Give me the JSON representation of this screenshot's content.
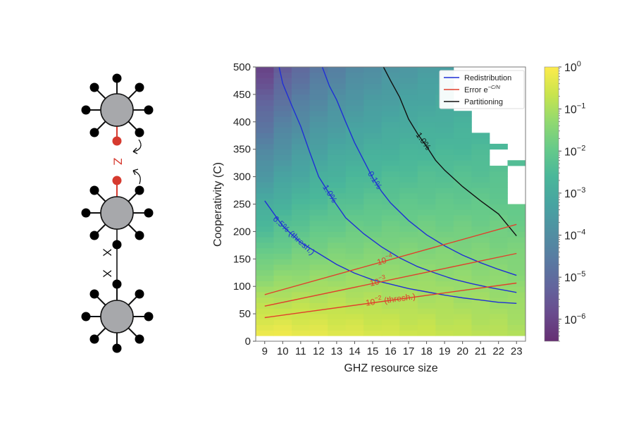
{
  "diagram": {
    "z_label": "Z",
    "x_labels": [
      "X",
      "X"
    ],
    "hub_color": "#a7a8ab",
    "node_color": "#000000",
    "highlight_color": "#d63a2f"
  },
  "chart_data": {
    "type": "heatmap",
    "xlabel": "GHZ resource size",
    "ylabel": "Cooperativity (C)",
    "x": [
      9,
      10,
      11,
      12,
      13,
      14,
      15,
      16,
      17,
      18,
      19,
      20,
      21,
      22,
      23
    ],
    "xtick_labels": [
      "9",
      "10",
      "11",
      "12",
      "13",
      "14",
      "15",
      "16",
      "17",
      "18",
      "19",
      "20",
      "21",
      "22",
      "23"
    ],
    "ylim": [
      0,
      500
    ],
    "yticks": [
      0,
      50,
      100,
      150,
      200,
      250,
      300,
      350,
      400,
      450,
      500
    ],
    "ytick_labels": [
      "0",
      "50",
      "100",
      "150",
      "200",
      "250",
      "300",
      "350",
      "400",
      "450",
      "500"
    ],
    "heatmap_c_range": [
      10,
      500
    ],
    "heatmap_c_step": 10,
    "colorbar": {
      "scale": "log",
      "range": [
        3e-07,
        1
      ],
      "tick_values": [
        1,
        0.1,
        0.01,
        0.001,
        0.0001,
        1e-05,
        1e-06
      ],
      "tick_exponents": [
        "0",
        "−1",
        "−2",
        "−3",
        "−4",
        "−5",
        "−6"
      ],
      "tick_base": "10",
      "colormap": "viridis"
    },
    "masked_cells_note": "white (no data) at top-right",
    "masked_cells": [
      {
        "n": 20,
        "c_min": 420,
        "c_max": 500
      },
      {
        "n": 21,
        "c_min": 380,
        "c_max": 500
      },
      {
        "n": 22,
        "c_min": 360,
        "c_max": 500
      },
      {
        "n": 22,
        "c_min": 320,
        "c_max": 350
      },
      {
        "n": 23,
        "c_min": 330,
        "c_max": 500
      },
      {
        "n": 23,
        "c_min": 250,
        "c_max": 320
      }
    ],
    "legend": {
      "placement": "top-right",
      "entries": [
        {
          "label": "Redistribution",
          "color": "#1f2fd6"
        },
        {
          "label_main": "Error e",
          "label_sup": "−C/N",
          "color": "#e0402c"
        },
        {
          "label": "Partitioning",
          "color": "#111111"
        }
      ]
    },
    "contours": [
      {
        "name": "redistribution-6.5",
        "family": "Redistribution",
        "label": "6.5% (thresh.)",
        "color": "#1f2fd6",
        "points": [
          [
            9,
            256
          ],
          [
            10,
            210
          ],
          [
            11,
            180
          ],
          [
            12,
            160
          ],
          [
            13,
            140
          ],
          [
            14,
            124
          ],
          [
            15,
            112
          ],
          [
            16,
            104
          ],
          [
            17,
            96
          ],
          [
            18,
            90
          ],
          [
            19,
            84
          ],
          [
            20,
            79
          ],
          [
            21,
            75
          ],
          [
            22,
            71
          ],
          [
            23,
            69
          ]
        ]
      },
      {
        "name": "redistribution-1.0",
        "family": "Redistribution",
        "label": "1.0%",
        "color": "#1f2fd6",
        "points": [
          [
            9.8,
            500
          ],
          [
            10,
            470
          ],
          [
            10.5,
            430
          ],
          [
            11,
            392
          ],
          [
            11.5,
            345
          ],
          [
            12,
            300
          ],
          [
            12.8,
            258
          ],
          [
            13.5,
            225
          ],
          [
            14.5,
            196
          ],
          [
            15.5,
            172
          ],
          [
            16.5,
            152
          ],
          [
            17.5,
            136
          ],
          [
            18.5,
            124
          ],
          [
            19.5,
            113
          ],
          [
            20.5,
            105
          ],
          [
            21.5,
            98
          ],
          [
            22.5,
            92
          ],
          [
            23,
            89
          ]
        ]
      },
      {
        "name": "redistribution-0.1",
        "family": "Redistribution",
        "label": "0.1%",
        "color": "#1f2fd6",
        "points": [
          [
            12.2,
            500
          ],
          [
            12.6,
            465
          ],
          [
            13,
            440
          ],
          [
            13.5,
            400
          ],
          [
            14,
            362
          ],
          [
            14.5,
            330
          ],
          [
            15,
            298
          ],
          [
            15.5,
            273
          ],
          [
            16,
            252
          ],
          [
            17,
            220
          ],
          [
            18,
            194
          ],
          [
            19,
            174
          ],
          [
            20,
            157
          ],
          [
            21,
            143
          ],
          [
            22,
            131
          ],
          [
            23,
            120
          ]
        ]
      },
      {
        "name": "partitioning-1.0",
        "family": "Partitioning",
        "label": "1.0%",
        "color": "#111111",
        "points": [
          [
            15.6,
            500
          ],
          [
            16,
            475
          ],
          [
            16.5,
            445
          ],
          [
            17,
            405
          ],
          [
            17.5,
            378
          ],
          [
            18,
            355
          ],
          [
            18.5,
            330
          ],
          [
            19,
            312
          ],
          [
            20,
            282
          ],
          [
            21,
            256
          ],
          [
            22,
            232
          ],
          [
            23,
            192
          ]
        ]
      },
      {
        "name": "error-1e-4",
        "family": "Error",
        "label": "10^-4",
        "label_base": "10",
        "label_exp": "−4",
        "color": "#e0402c",
        "points": [
          [
            9,
            85
          ],
          [
            23,
            213
          ]
        ]
      },
      {
        "name": "error-1e-3",
        "family": "Error",
        "label": "10^-3",
        "label_base": "10",
        "label_exp": "−3",
        "color": "#e0402c",
        "points": [
          [
            9,
            64
          ],
          [
            23,
            160
          ]
        ]
      },
      {
        "name": "error-1e-2",
        "family": "Error",
        "label": "10^-2 (thresh.)",
        "label_base": "10",
        "label_exp": "−2",
        "label_suffix": " (thresh.)",
        "color": "#e0402c",
        "points": [
          [
            9,
            43
          ],
          [
            23,
            106
          ]
        ]
      }
    ]
  }
}
